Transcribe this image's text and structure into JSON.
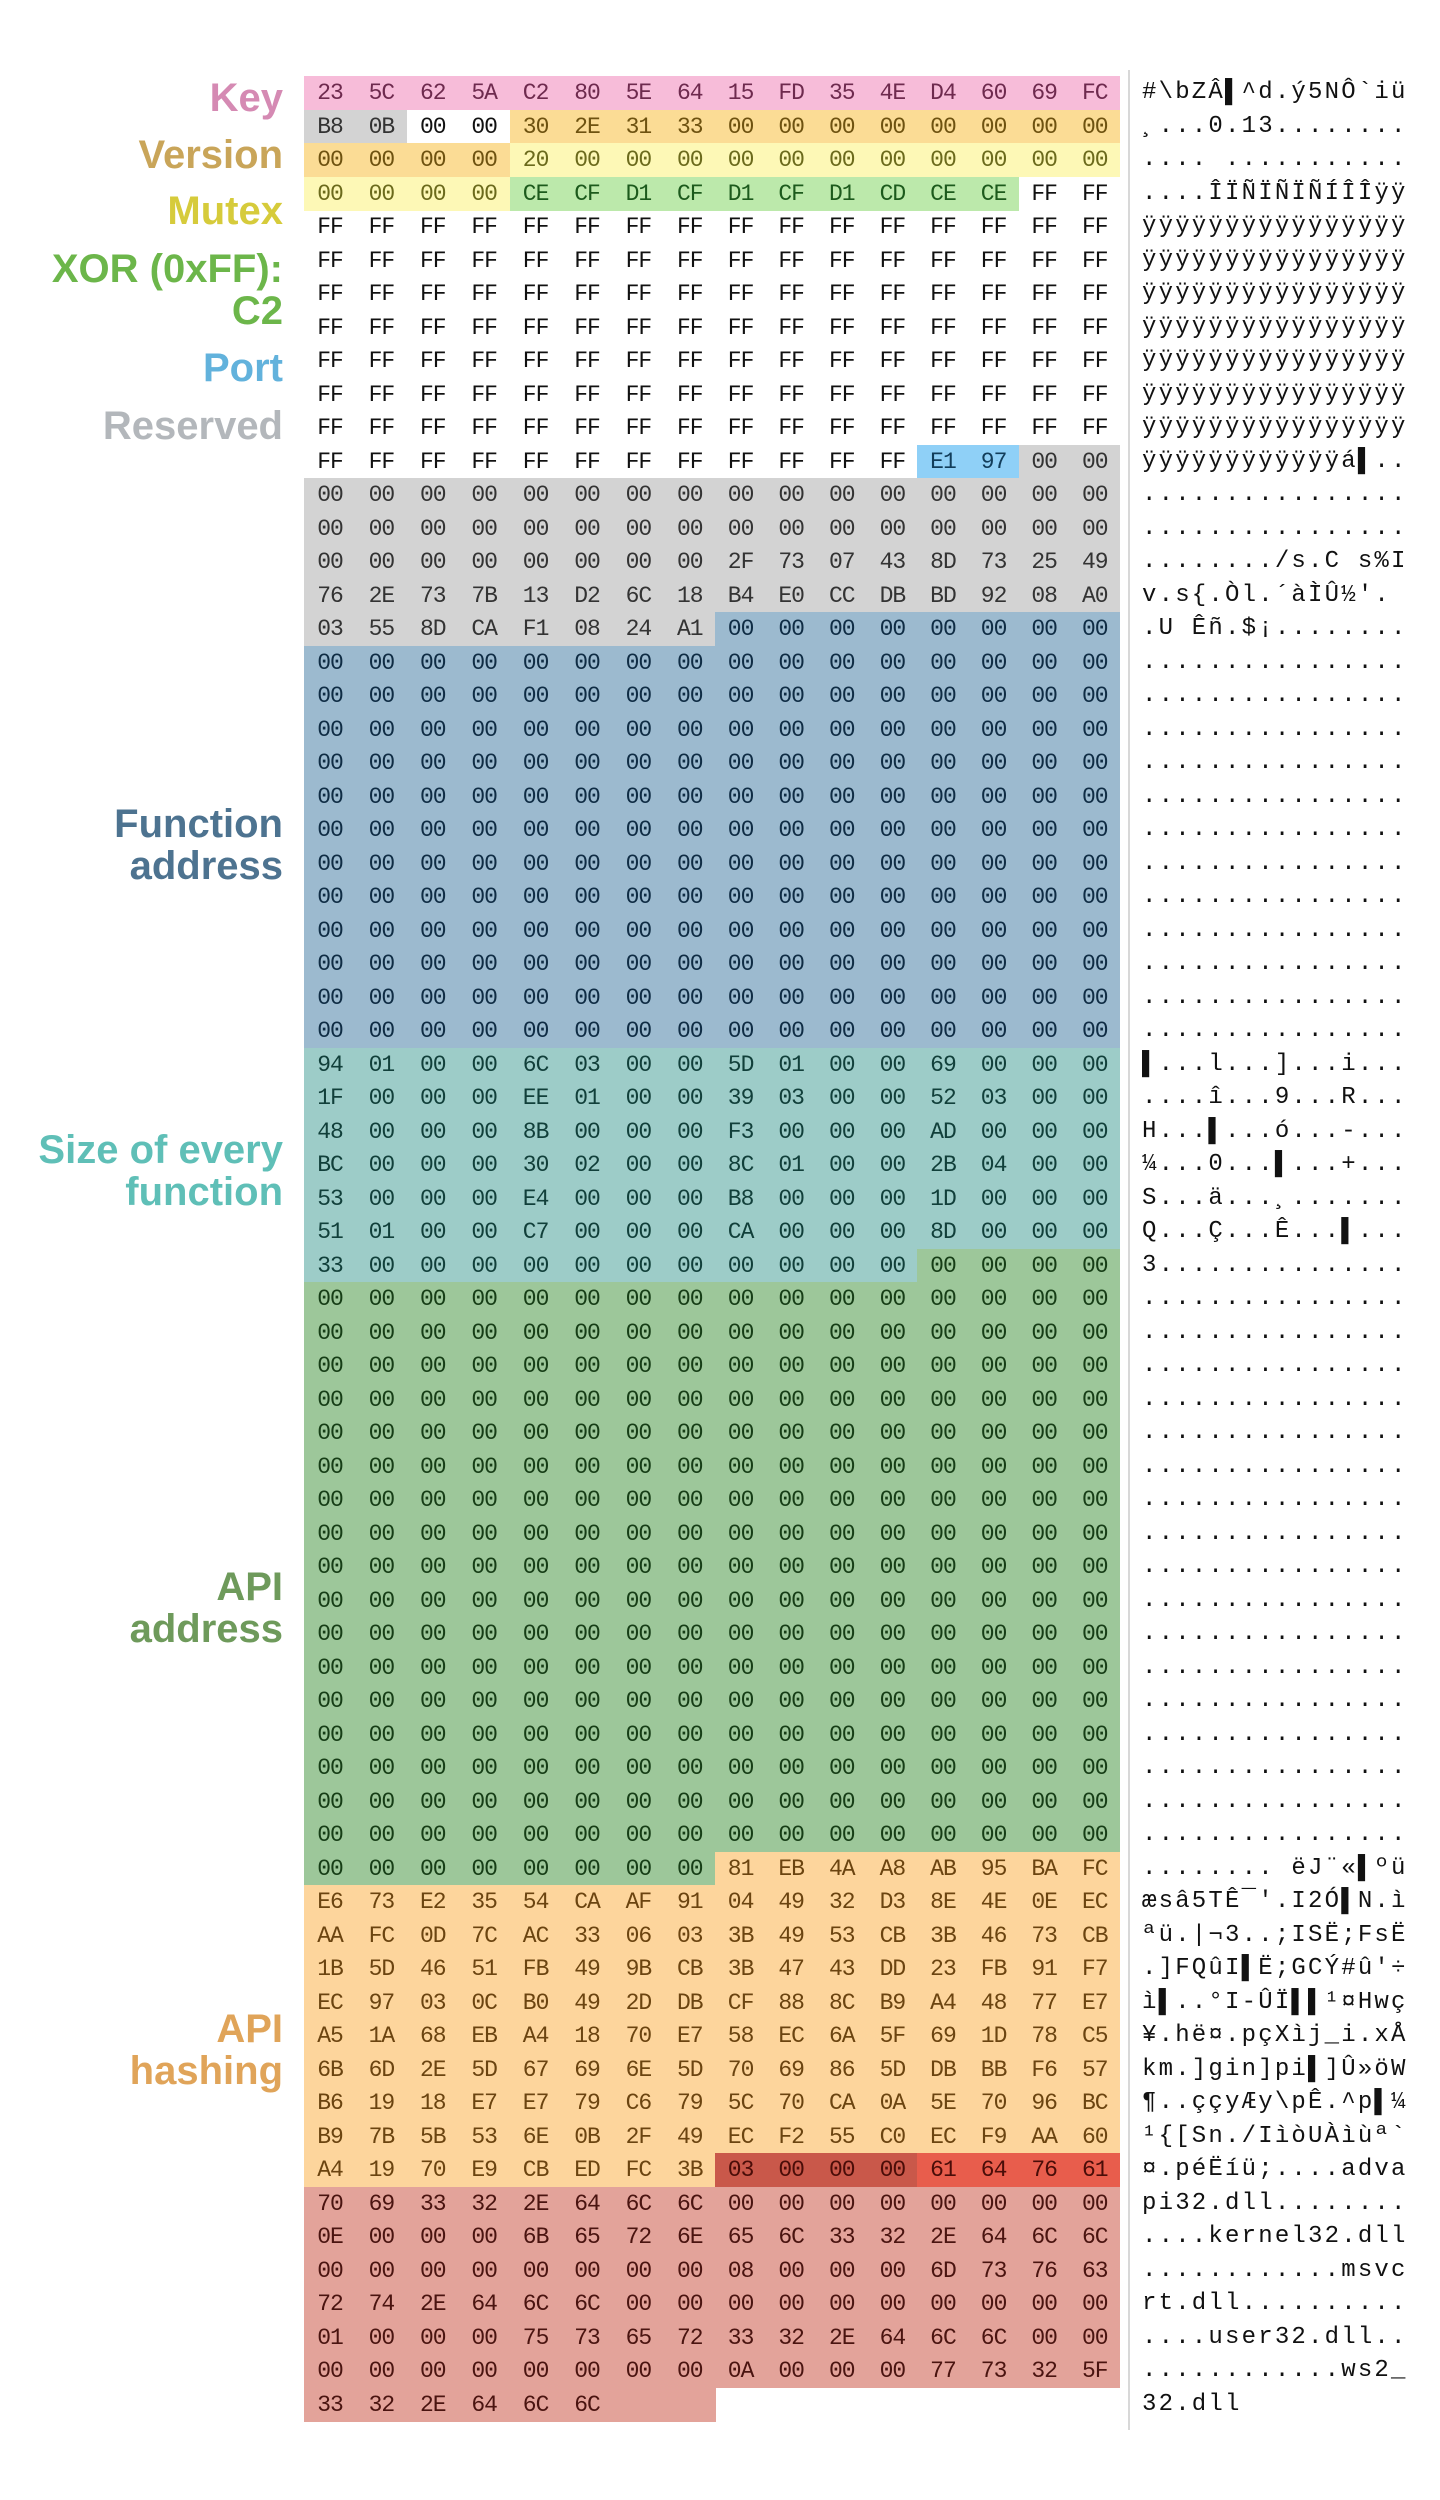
{
  "labels": [
    {
      "id": "key",
      "text": "Key",
      "color": "#d58ab3",
      "lines": [
        "Key"
      ]
    },
    {
      "id": "version",
      "color": "#c9a559",
      "lines": [
        "Version"
      ]
    },
    {
      "id": "mutex",
      "color": "#d6cb3b",
      "lines": [
        "Mutex"
      ]
    },
    {
      "id": "c2",
      "color": "#6cb64a",
      "lines": [
        "XOR (0xFF):",
        "C2"
      ]
    },
    {
      "id": "port",
      "color": "#62b2dc",
      "lines": [
        "Port"
      ]
    },
    {
      "id": "reserved",
      "color": "#b3b7bb",
      "lines": [
        "Reserved"
      ]
    },
    {
      "id": "function-address",
      "color": "#4d7390",
      "lines": [
        "Function",
        "address"
      ]
    },
    {
      "id": "function-size",
      "color": "#5fbfb7",
      "lines": [
        "Size of every",
        "function"
      ]
    },
    {
      "id": "api-address",
      "color": "#6e9a5b",
      "lines": [
        "API",
        "address"
      ]
    },
    {
      "id": "api-hashing",
      "color": "#e0a459",
      "lines": [
        "API",
        "hashing"
      ]
    }
  ],
  "regions": [
    {
      "name": "key",
      "start": 0,
      "end": 15,
      "bg": "#f7bcd9",
      "fg": "#6e2a4e"
    },
    {
      "name": "reserved",
      "start": 16,
      "end": 17,
      "bg": "#d3d3d3",
      "fg": "#333"
    },
    {
      "name": "version",
      "start": 20,
      "end": 35,
      "bg": "#fbdc95",
      "fg": "#6e5210"
    },
    {
      "name": "mutex",
      "start": 36,
      "end": 51,
      "bg": "#fdf8b6",
      "fg": "#6b6a1c"
    },
    {
      "name": "c2",
      "start": 52,
      "end": 61,
      "bg": "#bce9ab",
      "fg": "#1c5a1c"
    },
    {
      "name": "port",
      "start": 188,
      "end": 189,
      "bg": "#8fd0f7",
      "fg": "#123d5a"
    },
    {
      "name": "reserved",
      "start": 190,
      "end": 263,
      "bg": "#d3d3d3",
      "fg": "#333"
    },
    {
      "name": "function-address",
      "start": 264,
      "end": 463,
      "bg": "#9cbacf",
      "fg": "#0f2c44"
    },
    {
      "name": "function-size",
      "start": 464,
      "end": 571,
      "bg": "#9dccc8",
      "fg": "#113f3a"
    },
    {
      "name": "api-address",
      "start": 572,
      "end": 855,
      "bg": "#9dc79a",
      "fg": "#163d16"
    },
    {
      "name": "api-hashing",
      "start": 856,
      "end": 999,
      "bg": "#fdd59c",
      "fg": "#6b4410"
    },
    {
      "name": "dll-count",
      "start": 1000,
      "end": 1003,
      "bg": "#c9584a",
      "fg": "#4a0d08"
    },
    {
      "name": "dll-name-start",
      "start": 1004,
      "end": 1007,
      "bg": "#e85d4c",
      "fg": "#4a0d08"
    },
    {
      "name": "dll-names",
      "start": 1008,
      "end": 1111,
      "bg": "#e3a39a",
      "fg": "#4a1410"
    }
  ],
  "hex_rows": [
    "23 5C 62 5A C2 80 5E 64 15 FD 35 4E D4 60 69 FC",
    "B8 0B 00 00 30 2E 31 33 00 00 00 00 00 00 00 00",
    "00 00 00 00 20 00 00 00 00 00 00 00 00 00 00 00",
    "00 00 00 00 CE CF D1 CF D1 CF D1 CD CE CE FF FF",
    "FF FF FF FF FF FF FF FF FF FF FF FF FF FF FF FF",
    "FF FF FF FF FF FF FF FF FF FF FF FF FF FF FF FF",
    "FF FF FF FF FF FF FF FF FF FF FF FF FF FF FF FF",
    "FF FF FF FF FF FF FF FF FF FF FF FF FF FF FF FF",
    "FF FF FF FF FF FF FF FF FF FF FF FF FF FF FF FF",
    "FF FF FF FF FF FF FF FF FF FF FF FF FF FF FF FF",
    "FF FF FF FF FF FF FF FF FF FF FF FF FF FF FF FF",
    "FF FF FF FF FF FF FF FF FF FF FF FF E1 97 00 00",
    "00 00 00 00 00 00 00 00 00 00 00 00 00 00 00 00",
    "00 00 00 00 00 00 00 00 00 00 00 00 00 00 00 00",
    "00 00 00 00 00 00 00 00 2F 73 07 43 8D 73 25 49",
    "76 2E 73 7B 13 D2 6C 18 B4 E0 CC DB BD 92 08 A0",
    "03 55 8D CA F1 08 24 A1 00 00 00 00 00 00 00 00",
    "00 00 00 00 00 00 00 00 00 00 00 00 00 00 00 00",
    "00 00 00 00 00 00 00 00 00 00 00 00 00 00 00 00",
    "00 00 00 00 00 00 00 00 00 00 00 00 00 00 00 00",
    "00 00 00 00 00 00 00 00 00 00 00 00 00 00 00 00",
    "00 00 00 00 00 00 00 00 00 00 00 00 00 00 00 00",
    "00 00 00 00 00 00 00 00 00 00 00 00 00 00 00 00",
    "00 00 00 00 00 00 00 00 00 00 00 00 00 00 00 00",
    "00 00 00 00 00 00 00 00 00 00 00 00 00 00 00 00",
    "00 00 00 00 00 00 00 00 00 00 00 00 00 00 00 00",
    "00 00 00 00 00 00 00 00 00 00 00 00 00 00 00 00",
    "00 00 00 00 00 00 00 00 00 00 00 00 00 00 00 00",
    "00 00 00 00 00 00 00 00 00 00 00 00 00 00 00 00",
    "94 01 00 00 6C 03 00 00 5D 01 00 00 69 00 00 00",
    "1F 00 00 00 EE 01 00 00 39 03 00 00 52 03 00 00",
    "48 00 00 00 8B 00 00 00 F3 00 00 00 AD 00 00 00",
    "BC 00 00 00 30 02 00 00 8C 01 00 00 2B 04 00 00",
    "53 00 00 00 E4 00 00 00 B8 00 00 00 1D 00 00 00",
    "51 01 00 00 C7 00 00 00 CA 00 00 00 8D 00 00 00",
    "33 00 00 00 00 00 00 00 00 00 00 00 00 00 00 00",
    "00 00 00 00 00 00 00 00 00 00 00 00 00 00 00 00",
    "00 00 00 00 00 00 00 00 00 00 00 00 00 00 00 00",
    "00 00 00 00 00 00 00 00 00 00 00 00 00 00 00 00",
    "00 00 00 00 00 00 00 00 00 00 00 00 00 00 00 00",
    "00 00 00 00 00 00 00 00 00 00 00 00 00 00 00 00",
    "00 00 00 00 00 00 00 00 00 00 00 00 00 00 00 00",
    "00 00 00 00 00 00 00 00 00 00 00 00 00 00 00 00",
    "00 00 00 00 00 00 00 00 00 00 00 00 00 00 00 00",
    "00 00 00 00 00 00 00 00 00 00 00 00 00 00 00 00",
    "00 00 00 00 00 00 00 00 00 00 00 00 00 00 00 00",
    "00 00 00 00 00 00 00 00 00 00 00 00 00 00 00 00",
    "00 00 00 00 00 00 00 00 00 00 00 00 00 00 00 00",
    "00 00 00 00 00 00 00 00 00 00 00 00 00 00 00 00",
    "00 00 00 00 00 00 00 00 00 00 00 00 00 00 00 00",
    "00 00 00 00 00 00 00 00 00 00 00 00 00 00 00 00",
    "00 00 00 00 00 00 00 00 00 00 00 00 00 00 00 00",
    "00 00 00 00 00 00 00 00 00 00 00 00 00 00 00 00",
    "00 00 00 00 00 00 00 00 81 EB 4A A8 AB 95 BA FC",
    "E6 73 E2 35 54 CA AF 91 04 49 32 D3 8E 4E 0E EC",
    "AA FC 0D 7C AC 33 06 03 3B 49 53 CB 3B 46 73 CB",
    "1B 5D 46 51 FB 49 9B CB 3B 47 43 DD 23 FB 91 F7",
    "EC 97 03 0C B0 49 2D DB CF 88 8C B9 A4 48 77 E7",
    "A5 1A 68 EB A4 18 70 E7 58 EC 6A 5F 69 1D 78 C5",
    "6B 6D 2E 5D 67 69 6E 5D 70 69 86 5D DB BB F6 57",
    "B6 19 18 E7 E7 79 C6 79 5C 70 CA 0A 5E 70 96 BC",
    "B9 7B 5B 53 6E 0B 2F 49 EC F2 55 C0 EC F9 AA 60",
    "A4 19 70 E9 CB ED FC 3B 03 00 00 00 61 64 76 61",
    "70 69 33 32 2E 64 6C 6C 00 00 00 00 00 00 00 00",
    "0E 00 00 00 6B 65 72 6E 65 6C 33 32 2E 64 6C 6C",
    "00 00 00 00 00 00 00 00 08 00 00 00 6D 73 76 63",
    "72 74 2E 64 6C 6C 00 00 00 00 00 00 00 00 00 00",
    "01 00 00 00 75 73 65 72 33 32 2E 64 6C 6C 00 00",
    "00 00 00 00 00 00 00 00 0A 00 00 00 77 73 32 5F",
    "33 32 2E 64 6C 6C"
  ],
  "ascii_rows": [
    "#\\bZÂ▌^d.ý5NÔ`iü",
    "¸...0.13........",
    ".... ...........",
    "....ÎÏÑÏÑÏÑÍÎÎÿÿ",
    "ÿÿÿÿÿÿÿÿÿÿÿÿÿÿÿÿ",
    "ÿÿÿÿÿÿÿÿÿÿÿÿÿÿÿÿ",
    "ÿÿÿÿÿÿÿÿÿÿÿÿÿÿÿÿ",
    "ÿÿÿÿÿÿÿÿÿÿÿÿÿÿÿÿ",
    "ÿÿÿÿÿÿÿÿÿÿÿÿÿÿÿÿ",
    "ÿÿÿÿÿÿÿÿÿÿÿÿÿÿÿÿ",
    "ÿÿÿÿÿÿÿÿÿÿÿÿÿÿÿÿ",
    "ÿÿÿÿÿÿÿÿÿÿÿÿá▌..",
    "................",
    "................",
    "......../s.C s%I",
    "v.s{.Òl.´àÌÛ½'. ",
    ".U Êñ.$¡........",
    "................",
    "................",
    "................",
    "................",
    "................",
    "................",
    "................",
    "................",
    "................",
    "................",
    "................",
    "................",
    "▌...l...]...i...",
    "....î...9...R...",
    "H...▌...ó...-...",
    "¼...0...▌...+...",
    "S...ä...¸.......",
    "Q...Ç...Ê...▌...",
    "3...............",
    "................",
    "................",
    "................",
    "................",
    "................",
    "................",
    "................",
    "................",
    "................",
    "................",
    "................",
    "................",
    "................",
    "................",
    "................",
    "................",
    "................",
    "........ ëJ¨«▌ºü",
    "æsâ5TÊ¯'.I2Ó▌N.ì",
    "ªü.|¬3..;ISË;FsË",
    ".]FQûI▌Ë;GCÝ#û'÷",
    "ì▌..°I-ÛÏ▌▌¹¤Hwç",
    "¥.hë¤.pçXìj_i.xÅ",
    "km.]gin]pi▌]Û»öW",
    "¶..ççyÆy\\pÊ.^p▌¼",
    "¹{[Sn./IìòUÀìùª`",
    "¤.péËíü;....adva",
    "pi32.dll........",
    "....kernel32.dll",
    "............msvc",
    "rt.dll..........",
    "....user32.dll..",
    "............ws2_",
    "32.dll"
  ]
}
